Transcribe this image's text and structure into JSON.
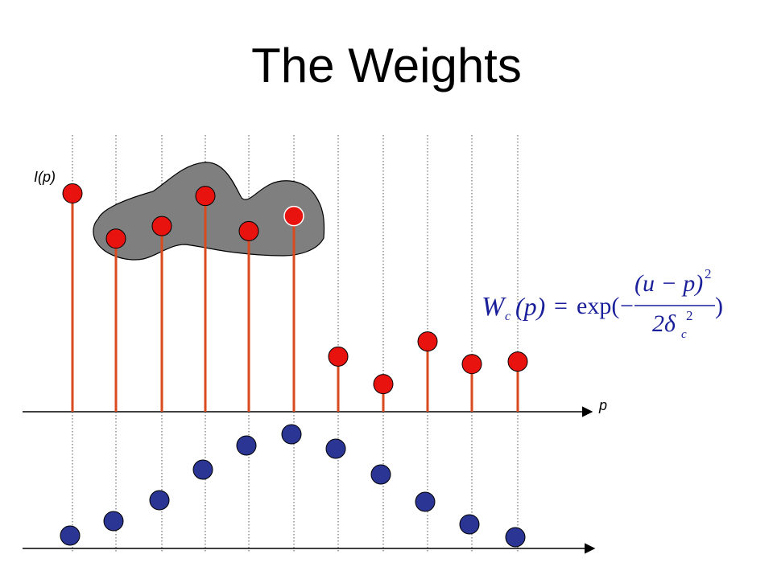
{
  "slide": {
    "title": "The Weights"
  },
  "axes": {
    "y_label": "I(p)",
    "x_label": "p"
  },
  "formula": {
    "lhs_symbol": "W",
    "lhs_subscript": "c",
    "lhs_arg": "(p)",
    "equals": "=",
    "function": "exp(",
    "minus": "−",
    "numerator": "(u − p)",
    "numerator_power": "2",
    "denominator_coef": "2δ",
    "denominator_sub": "c",
    "denominator_power": "2",
    "closing": ")"
  },
  "colors": {
    "red_point": "#e8130f",
    "red_stem": "#d94a1e",
    "blue_point": "#2b3593",
    "neighborhood_blob": "#7f7f7f",
    "formula": "#1a1f9a"
  },
  "chart_data": {
    "type": "scatter",
    "samples": 11,
    "intensity_stems": [
      0.87,
      0.69,
      0.74,
      0.86,
      0.72,
      0.78,
      0.22,
      0.11,
      0.28,
      0.19,
      0.2
    ],
    "weights": [
      0.08,
      0.17,
      0.3,
      0.49,
      0.64,
      0.71,
      0.62,
      0.46,
      0.29,
      0.15,
      0.07
    ],
    "neighborhood_indices": [
      1,
      2,
      3,
      4,
      5
    ]
  }
}
